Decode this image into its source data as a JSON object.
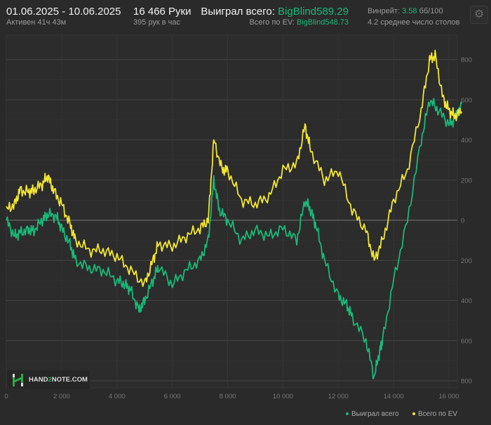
{
  "header": {
    "date_range": "01.06.2025 - 10.06.2025",
    "active": "Активен 41ч 43м",
    "hands": "16 466 Руки",
    "hands_per_hour": "395 рук в час",
    "won_label": "Выиграл всего:",
    "won_value": "BigBlind589.29",
    "ev_label": "Всего по EV:",
    "ev_value": "BigBlind548.73",
    "winrate_label": "Винрейт:",
    "winrate_value": "3.58",
    "winrate_unit": "бб/100",
    "tables": "4.2 среднее число столов",
    "settings_icon": "gear-icon"
  },
  "logo": {
    "text_a": "HAND",
    "text_b": "2",
    "text_c": "NOTE.COM"
  },
  "colors": {
    "won": "#19b97a",
    "ev": "#f2e633",
    "background": "#2a2a2a"
  },
  "chart_data": {
    "type": "line",
    "xlim": [
      0,
      16466
    ],
    "ylim": [
      -800,
      850
    ],
    "x_ticks": [
      "0",
      "2 000",
      "4 000",
      "6 000",
      "8 000",
      "10 000",
      "12 000",
      "14 000",
      "16 000"
    ],
    "x_tick_values": [
      0,
      2000,
      4000,
      6000,
      8000,
      10000,
      12000,
      14000,
      16000
    ],
    "y_ticks": [
      "800",
      "600",
      "400",
      "200",
      "0",
      "200",
      "400",
      "600",
      "800"
    ],
    "y_tick_values": [
      800,
      600,
      400,
      200,
      0,
      -200,
      -400,
      -600,
      -800
    ],
    "grid": true,
    "legend_position": "bottom-right",
    "series": [
      {
        "name": "Выиграл всего",
        "color": "#19b97a",
        "x": [
          0,
          300,
          500,
          800,
          1000,
          1300,
          1500,
          1800,
          2000,
          2300,
          2500,
          3000,
          3500,
          4000,
          4300,
          4500,
          4800,
          5000,
          5300,
          5500,
          6000,
          6500,
          7000,
          7300,
          7500,
          7700,
          8000,
          8500,
          9000,
          9500,
          10000,
          10500,
          10800,
          11000,
          11200,
          11500,
          12000,
          12300,
          12500,
          13000,
          13300,
          13500,
          13600,
          14000,
          14500,
          15000,
          15300,
          15600,
          16000,
          16200,
          16466
        ],
        "y": [
          0,
          -80,
          -60,
          -50,
          -50,
          0,
          30,
          20,
          -40,
          -120,
          -200,
          -240,
          -250,
          -300,
          -320,
          -350,
          -450,
          -400,
          -300,
          -230,
          -320,
          -250,
          -200,
          -100,
          200,
          50,
          0,
          -100,
          -50,
          -80,
          -40,
          -100,
          100,
          50,
          -30,
          -200,
          -380,
          -420,
          -480,
          -600,
          -780,
          -650,
          -600,
          -300,
          0,
          400,
          600,
          550,
          480,
          500,
          580
        ]
      },
      {
        "name": "Всего по EV",
        "color": "#f2e633",
        "x": [
          0,
          300,
          500,
          800,
          1000,
          1300,
          1500,
          1700,
          2000,
          2300,
          2500,
          3000,
          3500,
          4000,
          4500,
          5000,
          5300,
          5500,
          6000,
          6500,
          7000,
          7300,
          7500,
          7800,
          8000,
          8500,
          9000,
          9500,
          10000,
          10500,
          10800,
          11000,
          11500,
          12000,
          12500,
          13000,
          13300,
          13600,
          14000,
          14500,
          15000,
          15300,
          15500,
          15800,
          16000,
          16200,
          16466
        ],
        "y": [
          50,
          80,
          150,
          140,
          150,
          180,
          220,
          150,
          80,
          -20,
          -100,
          -150,
          -150,
          -180,
          -250,
          -320,
          -200,
          -120,
          -130,
          -80,
          -40,
          0,
          400,
          250,
          250,
          100,
          80,
          120,
          250,
          280,
          470,
          350,
          200,
          250,
          50,
          -50,
          -200,
          -100,
          100,
          250,
          550,
          800,
          820,
          600,
          550,
          520,
          540
        ]
      }
    ]
  }
}
